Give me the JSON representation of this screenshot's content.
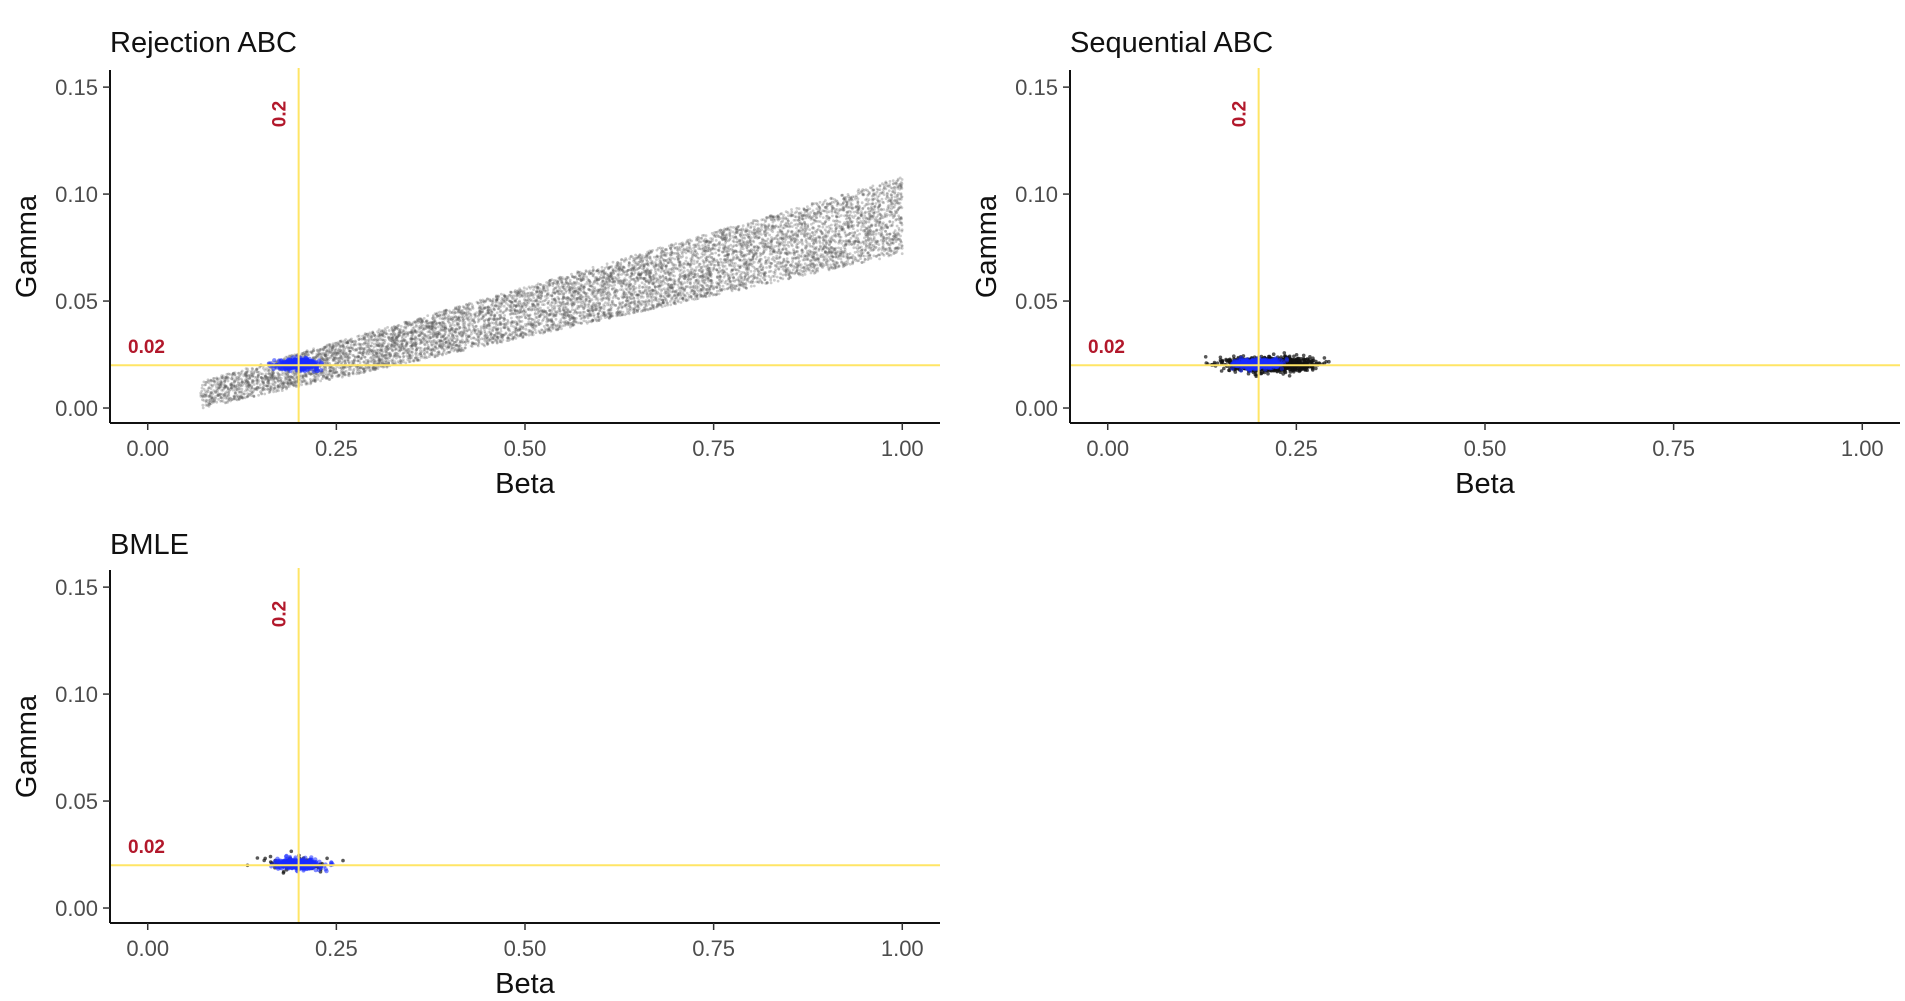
{
  "chart_data": [
    {
      "type": "scatter",
      "title": "Rejection ABC",
      "xlabel": "Beta",
      "ylabel": "Gamma",
      "xlim": [
        -0.05,
        1.05
      ],
      "ylim": [
        -0.007,
        0.158
      ],
      "xticks": [
        "0.00",
        "0.25",
        "0.50",
        "0.75",
        "1.00"
      ],
      "yticks": [
        "0.00",
        "0.05",
        "0.10",
        "0.15"
      ],
      "grid": false,
      "reference_lines": {
        "x": 0.2,
        "x_label": "0.2",
        "y": 0.02,
        "y_label": "0.02",
        "color": "#ffe566",
        "label_color": "#b2182b"
      },
      "series": [
        {
          "role": "posterior draws (grey)",
          "color": "#555555",
          "shape": "band",
          "x_range": [
            0.07,
            1.0
          ],
          "y_center_at_x_min": 0.006,
          "y_center_at_x_max": 0.09,
          "y_spread": 0.018,
          "count": 8000
        },
        {
          "role": "dense cluster (blue)",
          "color": "#1a2cff",
          "shape": "ellipse",
          "x_center": 0.2,
          "y_center": 0.0205,
          "x_spread": 0.028,
          "y_spread": 0.0025,
          "count": 500
        }
      ]
    },
    {
      "type": "scatter",
      "title": "Sequential ABC",
      "xlabel": "Beta",
      "ylabel": "Gamma",
      "xlim": [
        -0.05,
        1.05
      ],
      "ylim": [
        -0.007,
        0.158
      ],
      "xticks": [
        "0.00",
        "0.25",
        "0.50",
        "0.75",
        "1.00"
      ],
      "yticks": [
        "0.00",
        "0.05",
        "0.10",
        "0.15"
      ],
      "grid": false,
      "reference_lines": {
        "x": 0.2,
        "x_label": "0.2",
        "y": 0.02,
        "y_label": "0.02",
        "color": "#ffe566",
        "label_color": "#b2182b"
      },
      "series": [
        {
          "role": "posterior draws (black)",
          "color": "#111111",
          "shape": "ellipse",
          "x_center": 0.215,
          "y_center": 0.0205,
          "x_spread": 0.058,
          "y_spread": 0.0035,
          "count": 1200
        },
        {
          "role": "dense cluster (blue)",
          "color": "#1a2cff",
          "shape": "ellipse",
          "x_center": 0.2,
          "y_center": 0.0205,
          "x_spread": 0.035,
          "y_spread": 0.0025,
          "count": 400
        }
      ]
    },
    {
      "type": "scatter",
      "title": "BMLE",
      "xlabel": "Beta",
      "ylabel": "Gamma",
      "xlim": [
        -0.05,
        1.05
      ],
      "ylim": [
        -0.007,
        0.158
      ],
      "xticks": [
        "0.00",
        "0.25",
        "0.50",
        "0.75",
        "1.00"
      ],
      "yticks": [
        "0.00",
        "0.05",
        "0.10",
        "0.15"
      ],
      "grid": false,
      "reference_lines": {
        "x": 0.2,
        "x_label": "0.2",
        "y": 0.02,
        "y_label": "0.02",
        "color": "#ffe566",
        "label_color": "#b2182b"
      },
      "series": [
        {
          "role": "posterior draws (black)",
          "color": "#111111",
          "shape": "ellipse",
          "x_center": 0.2,
          "y_center": 0.0205,
          "x_spread": 0.05,
          "y_spread": 0.0035,
          "count": 80
        },
        {
          "role": "dense cluster (blue)",
          "color": "#1a2cff",
          "shape": "ellipse",
          "x_center": 0.2,
          "y_center": 0.0205,
          "x_spread": 0.03,
          "y_spread": 0.0025,
          "count": 400
        }
      ]
    }
  ]
}
